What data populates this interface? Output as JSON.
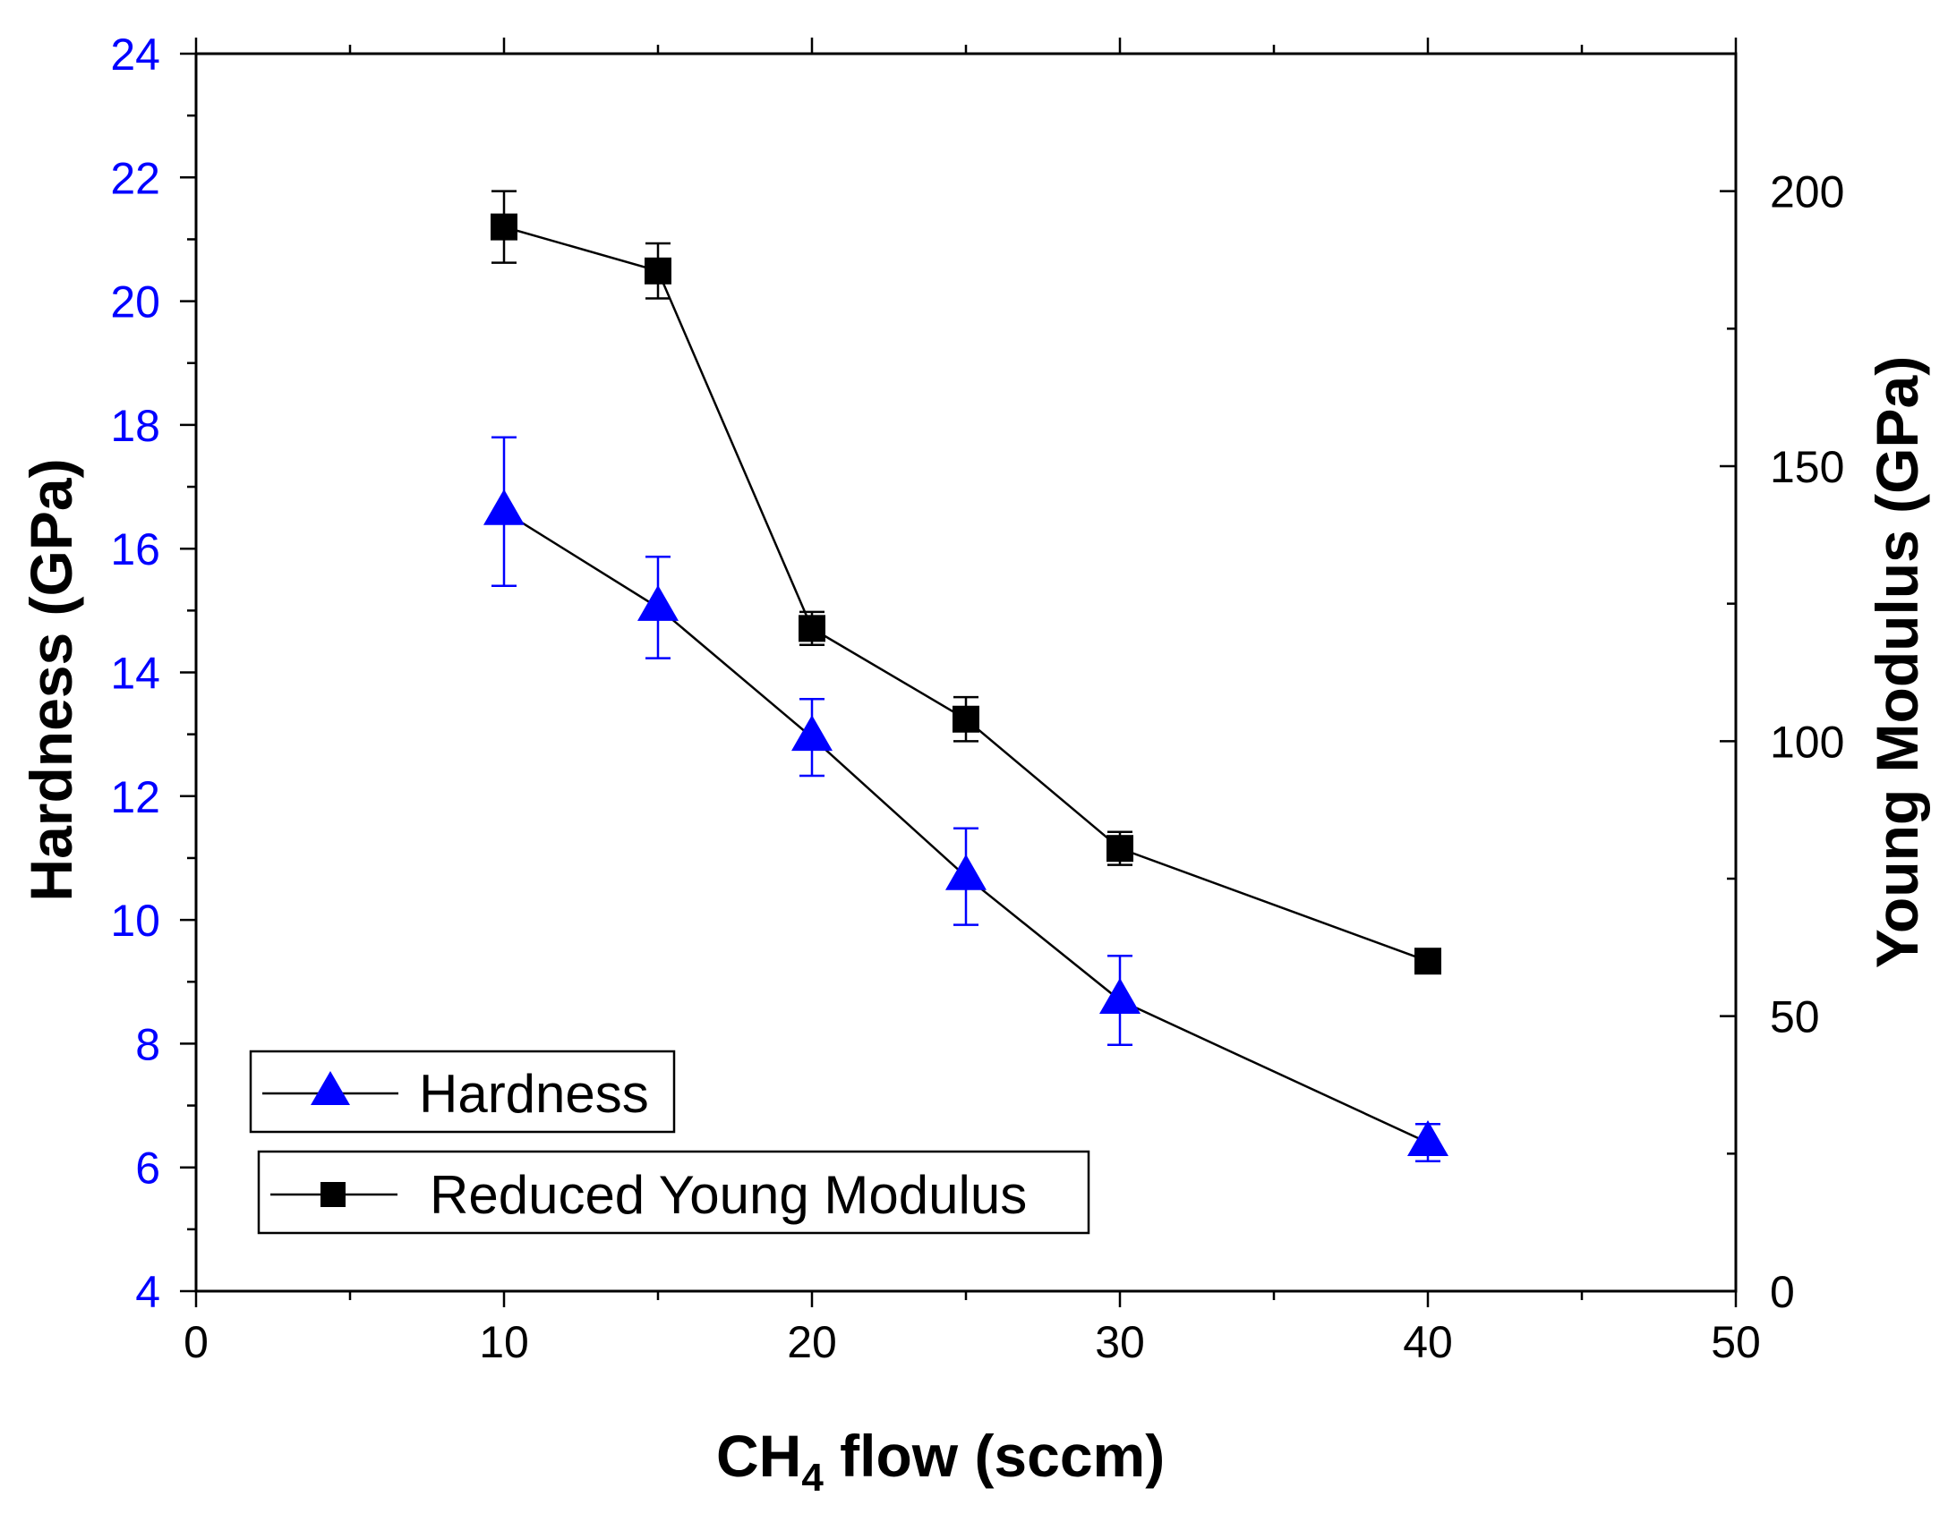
{
  "chart_data": {
    "type": "line",
    "title": "",
    "x": [
      10,
      15,
      20,
      25,
      30,
      40
    ],
    "xlabel": {
      "main": "CH",
      "subscript": "4",
      "rest": " flow (sccm)"
    },
    "ylabel_left": "Hardness (GPa)",
    "ylabel_right": "Young Modulus (GPa)",
    "xlim": [
      0,
      50
    ],
    "ylim_left": [
      4,
      24
    ],
    "ylim_right": [
      0,
      225
    ],
    "xticks": [
      "0",
      "10",
      "20",
      "30",
      "40",
      "50"
    ],
    "yticks_left": [
      "4",
      "6",
      "8",
      "10",
      "12",
      "14",
      "16",
      "18",
      "20",
      "22",
      "24"
    ],
    "yticks_right": [
      "0",
      "50",
      "100",
      "150",
      "200"
    ],
    "legend_position": "bottom-left",
    "grid": false,
    "series": [
      {
        "name": "Hardness",
        "axis": "left",
        "marker": "triangle",
        "color": "#0000ff",
        "values": [
          16.6,
          15.05,
          12.95,
          10.7,
          8.7,
          6.4
        ],
        "error": [
          1.2,
          0.82,
          0.62,
          0.78,
          0.72,
          0.3
        ]
      },
      {
        "name": "Reduced Young Modulus",
        "axis": "right",
        "marker": "square",
        "color": "#000000",
        "values": [
          193.5,
          185.5,
          120.5,
          104,
          80.5,
          60
        ],
        "error": [
          6.5,
          5,
          3,
          4,
          3,
          1
        ]
      }
    ]
  }
}
